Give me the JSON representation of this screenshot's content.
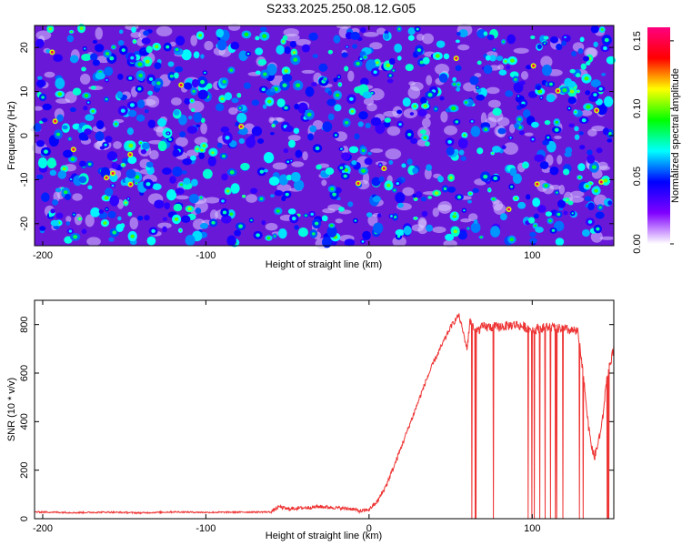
{
  "title": "S233.2025.250.08.12.G05",
  "chart_data": [
    {
      "type": "heatmap",
      "title": "S233.2025.250.08.12.G05",
      "xlabel": "Height of straight line (km)",
      "ylabel": "Frequency (Hz)",
      "xlim": [
        -205,
        150
      ],
      "ylim": [
        -25,
        25
      ],
      "x_ticks": [
        -200,
        -100,
        0,
        100
      ],
      "y_ticks": [
        -20,
        -10,
        0,
        10,
        20
      ],
      "colorbar": {
        "label": "Normalized spectral amplitude",
        "range": [
          0.0,
          0.16
        ],
        "ticks": [
          "0.00",
          "0.05",
          "0.10",
          "0.15"
        ],
        "colors": [
          "#ffffff",
          "#8000ff",
          "#0000ff",
          "#00ffff",
          "#00ff00",
          "#ffff00",
          "#ff0000",
          "#ff0080"
        ]
      },
      "description_values": {
        "background_level": 0.02,
        "typical_blob_level": 0.05,
        "max_level": 0.16
      }
    },
    {
      "type": "line",
      "xlabel": "Height of straight line (km)",
      "ylabel": "SNR (10 * v/v)",
      "xlim": [
        -205,
        150
      ],
      "ylim": [
        0,
        900
      ],
      "x_ticks": [
        -200,
        -100,
        0,
        100
      ],
      "y_ticks": [
        0,
        200,
        400,
        600,
        800
      ],
      "line_color": "#ee3333",
      "series": [
        {
          "points": [
            [
              -205,
              28
            ],
            [
              -180,
              25
            ],
            [
              -160,
              27
            ],
            [
              -140,
              24
            ],
            [
              -120,
              28
            ],
            [
              -100,
              26
            ],
            [
              -80,
              27
            ],
            [
              -60,
              28
            ],
            [
              -55,
              50
            ],
            [
              -50,
              40
            ],
            [
              -40,
              45
            ],
            [
              -30,
              50
            ],
            [
              -20,
              45
            ],
            [
              -10,
              40
            ],
            [
              -5,
              30
            ],
            [
              0,
              38
            ],
            [
              5,
              70
            ],
            [
              10,
              130
            ],
            [
              15,
              210
            ],
            [
              20,
              300
            ],
            [
              25,
              390
            ],
            [
              30,
              480
            ],
            [
              35,
              570
            ],
            [
              40,
              650
            ],
            [
              45,
              720
            ],
            [
              50,
              790
            ],
            [
              55,
              840
            ],
            [
              58,
              760
            ],
            [
              60,
              700
            ],
            [
              62,
              820
            ],
            [
              65,
              770
            ],
            [
              70,
              790
            ],
            [
              80,
              790
            ],
            [
              90,
              800
            ],
            [
              100,
              780
            ],
            [
              110,
              790
            ],
            [
              120,
              780
            ],
            [
              128,
              770
            ],
            [
              132,
              550
            ],
            [
              135,
              350
            ],
            [
              138,
              250
            ],
            [
              140,
              300
            ],
            [
              143,
              400
            ],
            [
              146,
              600
            ],
            [
              150,
              700
            ]
          ]
        }
      ]
    }
  ]
}
